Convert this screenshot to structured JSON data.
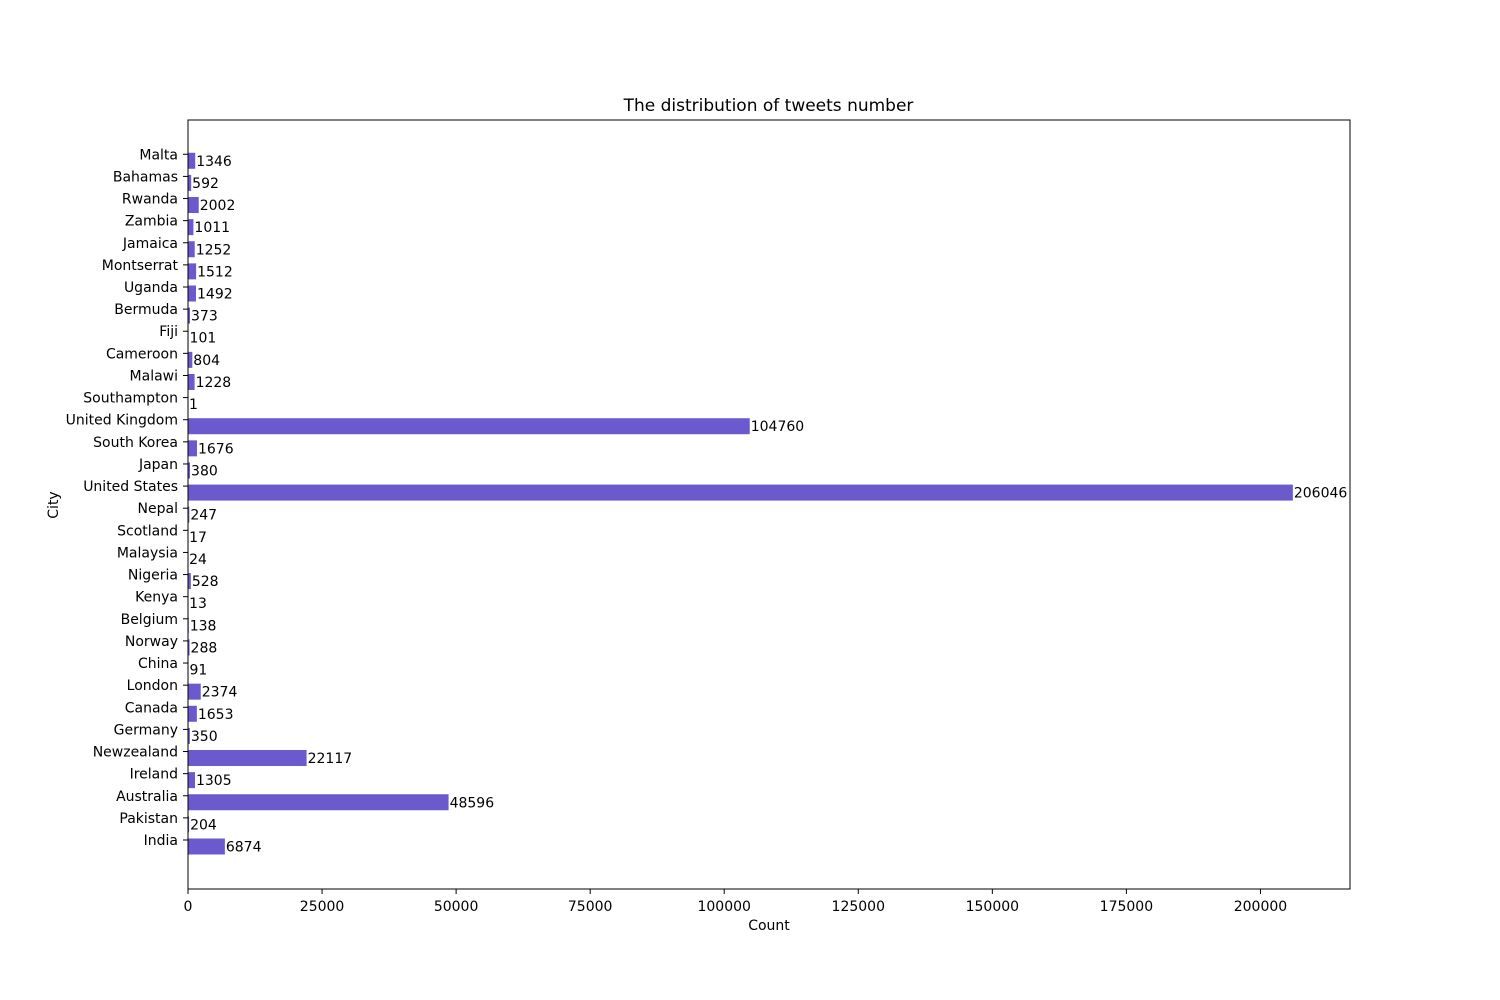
{
  "chart_data": {
    "type": "bar",
    "orientation": "horizontal",
    "title": "The distribution of tweets number",
    "xlabel": "Count",
    "ylabel": "City",
    "categories": [
      "India",
      "Pakistan",
      "Australia",
      "Ireland",
      "Newzealand",
      "Germany",
      "Canada",
      "London",
      "China",
      "Norway",
      "Belgium",
      "Kenya",
      "Nigeria",
      "Malaysia",
      "Scotland",
      "Nepal",
      "United States",
      "Japan",
      "South Korea",
      "United Kingdom",
      "Southampton",
      "Malawi",
      "Cameroon",
      "Fiji",
      "Bermuda",
      "Uganda",
      "Montserrat",
      "Jamaica",
      "Zambia",
      "Rwanda",
      "Bahamas",
      "Malta"
    ],
    "values": [
      6874,
      204,
      48596,
      1305,
      22117,
      350,
      1653,
      2374,
      91,
      288,
      138,
      13,
      528,
      24,
      17,
      247,
      206046,
      380,
      1676,
      104760,
      1,
      1228,
      804,
      101,
      373,
      1492,
      1512,
      1252,
      1011,
      2002,
      592,
      1346
    ],
    "xticks": [
      0,
      25000,
      50000,
      75000,
      100000,
      125000,
      150000,
      175000,
      200000
    ],
    "xlim": [
      0,
      216700
    ],
    "bar_color": "#6a5acd",
    "grid": false,
    "data_labels": true
  }
}
